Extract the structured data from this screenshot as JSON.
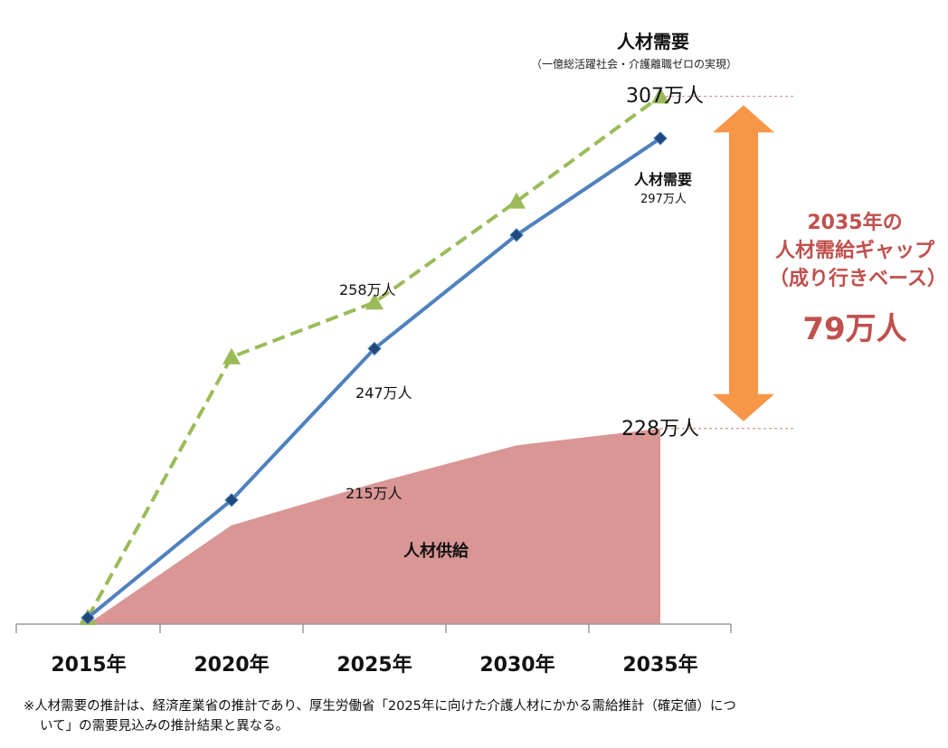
{
  "chart_data": {
    "type": "line",
    "categories": [
      "2015年",
      "2020年",
      "2025年",
      "2030年",
      "2035年"
    ],
    "series": [
      {
        "name": "人材需要（一億総活躍社会・介護離職ゼロの実現）",
        "style": "dashed-triangle",
        "color": "#9bbb59",
        "values": [
          183,
          245,
          258,
          282,
          307
        ]
      },
      {
        "name": "人材需要",
        "style": "solid-diamond",
        "color": "#4f81bd",
        "values": [
          183,
          211,
          247,
          274,
          297
        ]
      },
      {
        "name": "人材供給",
        "style": "area",
        "color": "#d99694",
        "values": [
          183,
          205,
          215,
          224,
          228
        ]
      }
    ],
    "ylim": [
      178,
      318
    ],
    "gap": {
      "value": "79万人",
      "from": 228,
      "to": 307,
      "color": "#f79646"
    }
  },
  "labels": {
    "demand_top_title": "人材需要",
    "demand_top_sub": "（一億総活躍社会・介護離職ゼロの実現）",
    "v307": "307万人",
    "demand_line_title": "人材需要",
    "v297": "297万人",
    "v258": "258万人",
    "v247": "247万人",
    "v228": "228万人",
    "v215": "215万人",
    "supply": "人材供給",
    "gap_line1": "2035年の",
    "gap_line2": "人材需給ギャップ",
    "gap_line3": "（成り行きベース）",
    "gap_value": "79万人"
  },
  "footnote": {
    "line1": "※人材需要の推計は、経済産業省の推計であり、厚生労働省「2025年に向けた介護人材にかかる需給推計（確定値）につ",
    "line2": "いて」の需要見込みの推計結果と異なる。"
  }
}
